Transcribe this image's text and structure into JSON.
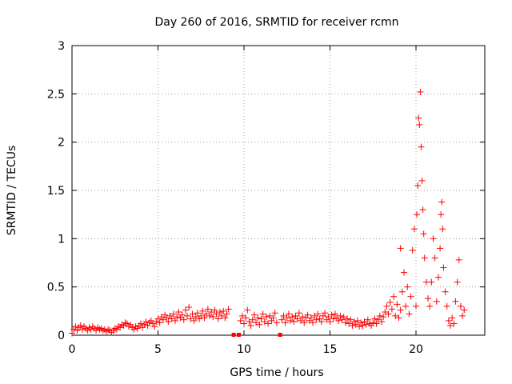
{
  "chart_data": {
    "type": "scatter",
    "title": "Day 260 of 2016, SRMTID for receiver rcmn",
    "xlabel": "GPS time / hours",
    "ylabel": "SRMTID / TECUs",
    "xlim": [
      0,
      24
    ],
    "ylim": [
      0,
      3
    ],
    "xticks": [
      0,
      5,
      10,
      15,
      20
    ],
    "yticks": [
      0,
      0.5,
      1,
      1.5,
      2,
      2.5,
      3
    ],
    "xtick_labels": [
      "0",
      "5",
      "10",
      "15",
      "20"
    ],
    "ytick_labels": [
      "0",
      "0.5",
      "1",
      "1.5",
      "2",
      "2.5",
      "3"
    ],
    "grid": true,
    "marker": "plus",
    "color": "#ff0000",
    "series": [
      {
        "values_xy": [
          [
            0.0,
            0.02
          ],
          [
            0.1,
            0.06
          ],
          [
            0.2,
            0.09
          ],
          [
            0.3,
            0.05
          ],
          [
            0.4,
            0.08
          ],
          [
            0.5,
            0.1
          ],
          [
            0.6,
            0.06
          ],
          [
            0.7,
            0.09
          ],
          [
            0.8,
            0.07
          ],
          [
            0.9,
            0.05
          ],
          [
            1.0,
            0.08
          ],
          [
            1.1,
            0.06
          ],
          [
            1.2,
            0.09
          ],
          [
            1.3,
            0.07
          ],
          [
            1.4,
            0.05
          ],
          [
            1.5,
            0.08
          ],
          [
            1.6,
            0.06
          ],
          [
            1.7,
            0.07
          ],
          [
            1.8,
            0.05
          ],
          [
            1.9,
            0.06
          ],
          [
            2.0,
            0.04
          ],
          [
            2.1,
            0.06
          ],
          [
            2.2,
            0.05
          ],
          [
            2.3,
            0.03
          ],
          [
            2.4,
            0.05
          ],
          [
            2.5,
            0.07
          ],
          [
            2.6,
            0.06
          ],
          [
            2.7,
            0.09
          ],
          [
            2.8,
            0.08
          ],
          [
            2.9,
            0.11
          ],
          [
            3.0,
            0.1
          ],
          [
            3.1,
            0.13
          ],
          [
            3.2,
            0.12
          ],
          [
            3.3,
            0.09
          ],
          [
            3.4,
            0.11
          ],
          [
            3.5,
            0.08
          ],
          [
            3.6,
            0.06
          ],
          [
            3.7,
            0.09
          ],
          [
            3.8,
            0.07
          ],
          [
            3.9,
            0.1
          ],
          [
            4.0,
            0.12
          ],
          [
            4.1,
            0.08
          ],
          [
            4.2,
            0.11
          ],
          [
            4.3,
            0.14
          ],
          [
            4.4,
            0.1
          ],
          [
            4.5,
            0.13
          ],
          [
            4.6,
            0.15
          ],
          [
            4.7,
            0.12
          ],
          [
            4.8,
            0.09
          ],
          [
            4.9,
            0.14
          ],
          [
            5.0,
            0.17
          ],
          [
            5.1,
            0.13
          ],
          [
            5.2,
            0.19
          ],
          [
            5.3,
            0.16
          ],
          [
            5.4,
            0.21
          ],
          [
            5.5,
            0.18
          ],
          [
            5.6,
            0.14
          ],
          [
            5.7,
            0.2
          ],
          [
            5.8,
            0.17
          ],
          [
            5.9,
            0.22
          ],
          [
            6.0,
            0.15
          ],
          [
            6.1,
            0.19
          ],
          [
            6.2,
            0.24
          ],
          [
            6.3,
            0.18
          ],
          [
            6.4,
            0.21
          ],
          [
            6.5,
            0.16
          ],
          [
            6.6,
            0.26
          ],
          [
            6.7,
            0.2
          ],
          [
            6.8,
            0.29
          ],
          [
            6.9,
            0.17
          ],
          [
            7.0,
            0.22
          ],
          [
            7.1,
            0.15
          ],
          [
            7.2,
            0.19
          ],
          [
            7.3,
            0.23
          ],
          [
            7.4,
            0.17
          ],
          [
            7.5,
            0.2
          ],
          [
            7.6,
            0.25
          ],
          [
            7.7,
            0.18
          ],
          [
            7.8,
            0.22
          ],
          [
            7.9,
            0.27
          ],
          [
            8.0,
            0.2
          ],
          [
            8.1,
            0.24
          ],
          [
            8.2,
            0.19
          ],
          [
            8.3,
            0.26
          ],
          [
            8.4,
            0.22
          ],
          [
            8.5,
            0.17
          ],
          [
            8.6,
            0.24
          ],
          [
            8.7,
            0.2
          ],
          [
            8.8,
            0.25
          ],
          [
            8.9,
            0.18
          ],
          [
            9.0,
            0.22
          ],
          [
            9.1,
            0.27
          ],
          [
            9.4,
            0.0
          ],
          [
            9.7,
            0.0
          ],
          [
            9.8,
            0.15
          ],
          [
            9.9,
            0.2
          ],
          [
            10.0,
            0.12
          ],
          [
            10.1,
            0.18
          ],
          [
            10.2,
            0.26
          ],
          [
            10.3,
            0.14
          ],
          [
            10.4,
            0.1
          ],
          [
            10.5,
            0.16
          ],
          [
            10.6,
            0.21
          ],
          [
            10.7,
            0.13
          ],
          [
            10.8,
            0.18
          ],
          [
            10.9,
            0.11
          ],
          [
            11.0,
            0.17
          ],
          [
            11.1,
            0.22
          ],
          [
            11.2,
            0.14
          ],
          [
            11.3,
            0.19
          ],
          [
            11.4,
            0.12
          ],
          [
            11.5,
            0.2
          ],
          [
            11.6,
            0.15
          ],
          [
            11.7,
            0.18
          ],
          [
            11.8,
            0.23
          ],
          [
            11.9,
            0.13
          ],
          [
            12.1,
            0.0
          ],
          [
            12.2,
            0.16
          ],
          [
            12.3,
            0.2
          ],
          [
            12.4,
            0.13
          ],
          [
            12.5,
            0.18
          ],
          [
            12.6,
            0.22
          ],
          [
            12.7,
            0.15
          ],
          [
            12.8,
            0.19
          ],
          [
            12.9,
            0.14
          ],
          [
            13.0,
            0.2
          ],
          [
            13.1,
            0.17
          ],
          [
            13.2,
            0.23
          ],
          [
            13.3,
            0.15
          ],
          [
            13.4,
            0.19
          ],
          [
            13.5,
            0.13
          ],
          [
            13.6,
            0.18
          ],
          [
            13.7,
            0.21
          ],
          [
            13.8,
            0.15
          ],
          [
            13.9,
            0.18
          ],
          [
            14.0,
            0.13
          ],
          [
            14.1,
            0.2
          ],
          [
            14.2,
            0.16
          ],
          [
            14.3,
            0.22
          ],
          [
            14.4,
            0.17
          ],
          [
            14.5,
            0.14
          ],
          [
            14.6,
            0.2
          ],
          [
            14.7,
            0.23
          ],
          [
            14.8,
            0.16
          ],
          [
            14.9,
            0.19
          ],
          [
            15.0,
            0.14
          ],
          [
            15.1,
            0.21
          ],
          [
            15.2,
            0.17
          ],
          [
            15.3,
            0.22
          ],
          [
            15.4,
            0.18
          ],
          [
            15.5,
            0.15
          ],
          [
            15.6,
            0.2
          ],
          [
            15.7,
            0.16
          ],
          [
            15.8,
            0.19
          ],
          [
            15.9,
            0.13
          ],
          [
            16.0,
            0.17
          ],
          [
            16.1,
            0.12
          ],
          [
            16.2,
            0.16
          ],
          [
            16.3,
            0.1
          ],
          [
            16.4,
            0.14
          ],
          [
            16.5,
            0.11
          ],
          [
            16.6,
            0.15
          ],
          [
            16.7,
            0.09
          ],
          [
            16.8,
            0.13
          ],
          [
            16.9,
            0.1
          ],
          [
            17.0,
            0.14
          ],
          [
            17.1,
            0.11
          ],
          [
            17.2,
            0.16
          ],
          [
            17.3,
            0.12
          ],
          [
            17.4,
            0.1
          ],
          [
            17.5,
            0.13
          ],
          [
            17.6,
            0.17
          ],
          [
            17.7,
            0.12
          ],
          [
            17.8,
            0.16
          ],
          [
            17.9,
            0.2
          ],
          [
            18.0,
            0.14
          ],
          [
            18.1,
            0.19
          ],
          [
            18.2,
            0.24
          ],
          [
            18.3,
            0.3
          ],
          [
            18.4,
            0.22
          ],
          [
            18.5,
            0.34
          ],
          [
            18.6,
            0.27
          ],
          [
            18.7,
            0.4
          ],
          [
            18.8,
            0.2
          ],
          [
            18.9,
            0.32
          ],
          [
            19.0,
            0.18
          ],
          [
            19.1,
            0.26
          ],
          [
            19.1,
            0.9
          ],
          [
            19.2,
            0.45
          ],
          [
            19.3,
            0.65
          ],
          [
            19.4,
            0.3
          ],
          [
            19.5,
            0.5
          ],
          [
            19.6,
            0.22
          ],
          [
            19.7,
            0.4
          ],
          [
            19.8,
            0.88
          ],
          [
            19.9,
            1.1
          ],
          [
            20.0,
            0.3
          ],
          [
            20.05,
            1.25
          ],
          [
            20.1,
            1.55
          ],
          [
            20.15,
            2.25
          ],
          [
            20.2,
            2.18
          ],
          [
            20.25,
            2.52
          ],
          [
            20.3,
            1.95
          ],
          [
            20.35,
            1.6
          ],
          [
            20.4,
            1.3
          ],
          [
            20.45,
            1.05
          ],
          [
            20.5,
            0.8
          ],
          [
            20.6,
            0.55
          ],
          [
            20.7,
            0.38
          ],
          [
            20.8,
            0.3
          ],
          [
            20.9,
            0.55
          ],
          [
            21.0,
            1.0
          ],
          [
            21.1,
            0.8
          ],
          [
            21.2,
            0.35
          ],
          [
            21.3,
            0.6
          ],
          [
            21.4,
            0.9
          ],
          [
            21.45,
            1.25
          ],
          [
            21.5,
            1.38
          ],
          [
            21.55,
            1.1
          ],
          [
            21.6,
            0.7
          ],
          [
            21.7,
            0.45
          ],
          [
            21.8,
            0.3
          ],
          [
            21.9,
            0.15
          ],
          [
            22.0,
            0.1
          ],
          [
            22.1,
            0.18
          ],
          [
            22.2,
            0.12
          ],
          [
            22.3,
            0.35
          ],
          [
            22.4,
            0.55
          ],
          [
            22.5,
            0.78
          ],
          [
            22.6,
            0.3
          ],
          [
            22.7,
            0.2
          ],
          [
            22.8,
            0.26
          ]
        ]
      }
    ]
  }
}
